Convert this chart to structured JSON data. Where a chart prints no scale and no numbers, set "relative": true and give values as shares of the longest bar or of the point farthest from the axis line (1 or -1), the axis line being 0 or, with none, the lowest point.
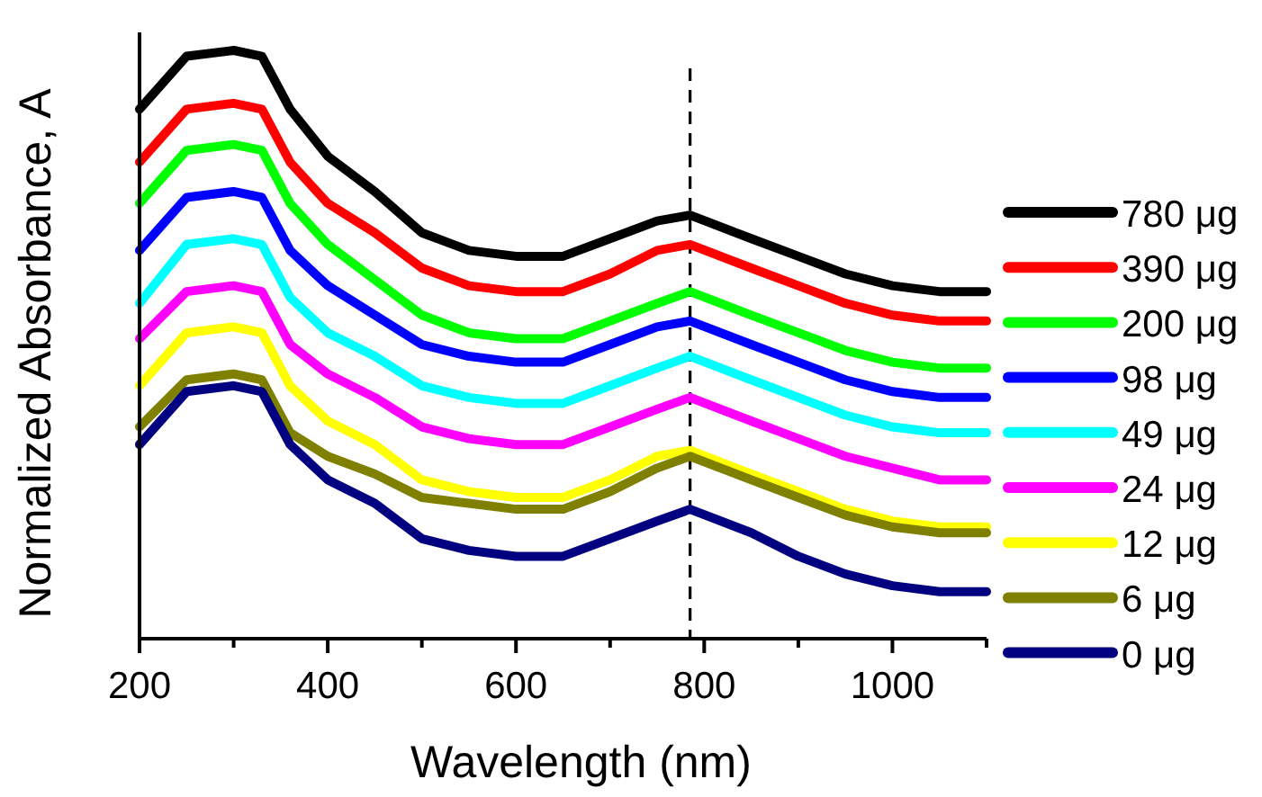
{
  "chart_data": {
    "type": "line",
    "xlabel": "Wavelength (nm)",
    "ylabel": "Normalized Absorbance, A",
    "relative": true,
    "legend": "right",
    "x": [
      200,
      250,
      300,
      330,
      360,
      400,
      450,
      500,
      550,
      600,
      650,
      700,
      750,
      785,
      850,
      900,
      950,
      1000,
      1050,
      1100
    ],
    "xlim": [
      200,
      1100
    ],
    "xticks": [
      200,
      {
        "value": 300,
        "label": null
      },
      400,
      {
        "value": 500,
        "label": null
      },
      600,
      {
        "value": 700,
        "label": null
      },
      800,
      {
        "value": 900,
        "label": null
      },
      1000,
      {
        "value": 1100,
        "label": null
      }
    ],
    "ref_lines": [
      {
        "axis": "x",
        "value": 785,
        "line_style": "dashed",
        "color": "#000000"
      }
    ],
    "series": [
      {
        "name": "780 μg",
        "color": "#000000",
        "values": [
          0.9,
          0.99,
          1.0,
          0.99,
          0.9,
          0.82,
          0.76,
          0.69,
          0.66,
          0.65,
          0.65,
          0.68,
          0.71,
          0.72,
          0.68,
          0.65,
          0.62,
          0.6,
          0.59,
          0.59
        ]
      },
      {
        "name": "390 μg",
        "color": "#ff0000",
        "values": [
          0.81,
          0.9,
          0.91,
          0.9,
          0.81,
          0.74,
          0.69,
          0.63,
          0.6,
          0.59,
          0.59,
          0.62,
          0.66,
          0.67,
          0.63,
          0.6,
          0.57,
          0.55,
          0.54,
          0.54
        ]
      },
      {
        "name": "200 μg",
        "color": "#00ff00",
        "values": [
          0.74,
          0.83,
          0.84,
          0.83,
          0.74,
          0.67,
          0.61,
          0.55,
          0.52,
          0.51,
          0.51,
          0.54,
          0.57,
          0.59,
          0.55,
          0.52,
          0.49,
          0.47,
          0.46,
          0.46
        ]
      },
      {
        "name": "98 μg",
        "color": "#0000ff",
        "values": [
          0.66,
          0.75,
          0.76,
          0.75,
          0.66,
          0.6,
          0.55,
          0.5,
          0.48,
          0.47,
          0.47,
          0.5,
          0.53,
          0.54,
          0.5,
          0.47,
          0.44,
          0.42,
          0.41,
          0.41
        ]
      },
      {
        "name": "49 μg",
        "color": "#00ffff",
        "values": [
          0.57,
          0.67,
          0.68,
          0.67,
          0.58,
          0.52,
          0.48,
          0.43,
          0.41,
          0.4,
          0.4,
          0.43,
          0.46,
          0.48,
          0.44,
          0.41,
          0.38,
          0.36,
          0.35,
          0.35
        ]
      },
      {
        "name": "24 μg",
        "color": "#ff00ff",
        "values": [
          0.51,
          0.59,
          0.6,
          0.59,
          0.5,
          0.45,
          0.41,
          0.36,
          0.34,
          0.33,
          0.33,
          0.36,
          0.39,
          0.41,
          0.37,
          0.34,
          0.31,
          0.29,
          0.27,
          0.27
        ]
      },
      {
        "name": "12 μg",
        "color": "#ffff00",
        "values": [
          0.43,
          0.52,
          0.53,
          0.52,
          0.43,
          0.37,
          0.33,
          0.27,
          0.25,
          0.24,
          0.24,
          0.27,
          0.31,
          0.32,
          0.28,
          0.25,
          0.22,
          0.2,
          0.19,
          0.19
        ]
      },
      {
        "name": "6 μg",
        "color": "#808000",
        "values": [
          0.36,
          0.44,
          0.45,
          0.44,
          0.35,
          0.31,
          0.28,
          0.24,
          0.23,
          0.22,
          0.22,
          0.25,
          0.29,
          0.31,
          0.27,
          0.24,
          0.21,
          0.19,
          0.18,
          0.18
        ]
      },
      {
        "name": "0 μg",
        "color": "#000080",
        "values": [
          0.33,
          0.42,
          0.43,
          0.42,
          0.33,
          0.27,
          0.23,
          0.17,
          0.15,
          0.14,
          0.14,
          0.17,
          0.2,
          0.22,
          0.18,
          0.14,
          0.11,
          0.09,
          0.08,
          0.08
        ]
      }
    ]
  }
}
